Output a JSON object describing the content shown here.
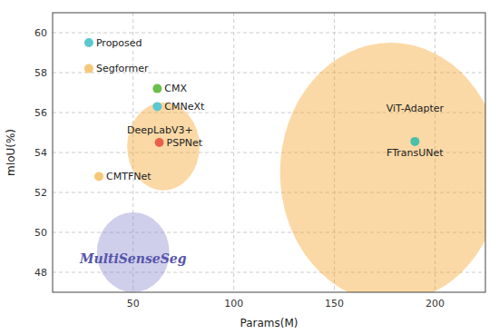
{
  "chart_data": {
    "type": "scatter",
    "xlabel": "Params(M)",
    "ylabel": "mIoU(%)",
    "xlim": [
      10,
      225
    ],
    "ylim": [
      47,
      61
    ],
    "xticks": [
      50,
      100,
      150,
      200
    ],
    "yticks": [
      48,
      50,
      52,
      54,
      56,
      58,
      60
    ],
    "grid": true,
    "points": [
      {
        "name": "Proposed",
        "x": 28,
        "y": 59.5,
        "color": "#5bc8d0"
      },
      {
        "name": "Segformer",
        "x": 28,
        "y": 58.2,
        "color": "#f5c87a"
      },
      {
        "name": "CMX",
        "x": 62,
        "y": 57.2,
        "color": "#6abf4b"
      },
      {
        "name": "CMNeXt",
        "x": 62,
        "y": 56.3,
        "color": "#5bc8d0"
      },
      {
        "name": "PSPNet",
        "x": 63,
        "y": 54.5,
        "color": "#e8604c"
      },
      {
        "name": "CMTFNet",
        "x": 33,
        "y": 52.8,
        "color": "#f5c87a"
      },
      {
        "name": "FTransUNet",
        "x": 190,
        "y": 54.55,
        "color": "#4bbfaa"
      }
    ],
    "annotations": [
      {
        "text": "DeepLabV3+",
        "x": 47,
        "y": 55.1
      },
      {
        "text": "MultiSenseSeg",
        "x": 50,
        "y": 48.7,
        "color": "#5555aa"
      },
      {
        "text": "ViT-Adapter",
        "x": 190,
        "y": 56.2
      }
    ],
    "highlights": [
      {
        "x": 65,
        "y": 54.3,
        "rx": 18,
        "ry": 2.2,
        "color": "#f5a020"
      },
      {
        "x": 50,
        "y": 49.0,
        "rx": 18,
        "ry": 2.0,
        "color": "#8888cc"
      },
      {
        "x": 178,
        "y": 53.0,
        "rx": 55,
        "ry": 6.5,
        "color": "#f5a020"
      }
    ]
  }
}
